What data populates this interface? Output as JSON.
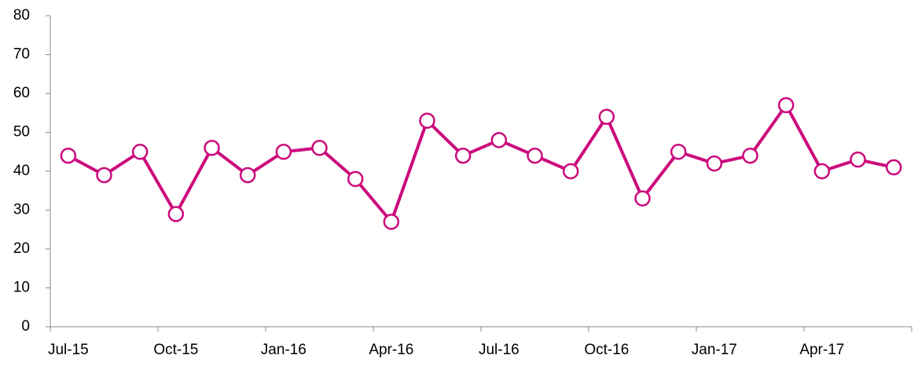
{
  "chart_data": {
    "type": "line",
    "categories": [
      "Jul-15",
      null,
      null,
      "Oct-15",
      null,
      null,
      "Jan-16",
      null,
      null,
      "Apr-16",
      null,
      null,
      "Jul-16",
      null,
      null,
      "Oct-16",
      null,
      null,
      "Jan-17",
      null,
      null,
      "Apr-17",
      null,
      null
    ],
    "series": [
      {
        "color": "#cc0a7c",
        "values": [
          44,
          39,
          45,
          29,
          46,
          39,
          45,
          46,
          38,
          27,
          53,
          44,
          48,
          44,
          40,
          54,
          33,
          45,
          42,
          44,
          57,
          40,
          43,
          41
        ]
      }
    ],
    "ylim": [
      0,
      80
    ],
    "yticks": [
      0,
      10,
      20,
      30,
      40,
      50,
      60,
      70,
      80
    ],
    "grid": false
  }
}
